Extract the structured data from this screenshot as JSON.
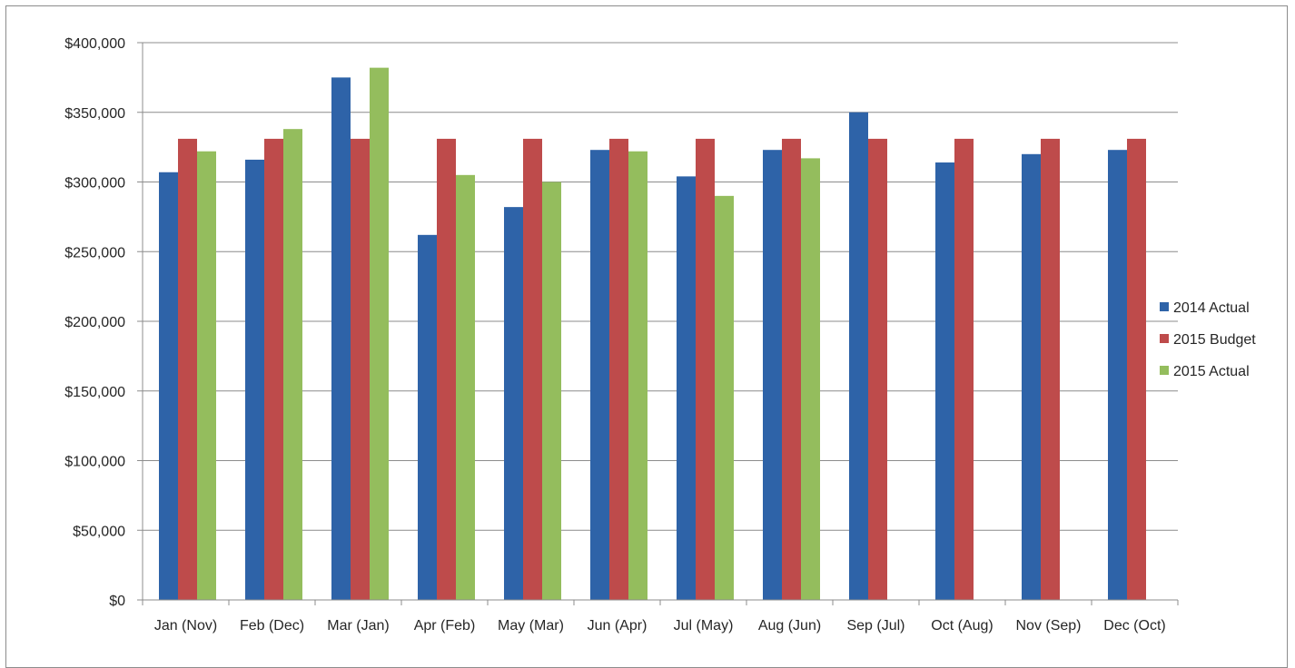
{
  "chart_data": {
    "type": "bar",
    "categories": [
      "Jan (Nov)",
      "Feb (Dec)",
      "Mar (Jan)",
      "Apr (Feb)",
      "May (Mar)",
      "Jun (Apr)",
      "Jul (May)",
      "Aug (Jun)",
      "Sep (Jul)",
      "Oct (Aug)",
      "Nov (Sep)",
      "Dec (Oct)"
    ],
    "series": [
      {
        "name": "2014 Actual",
        "color": "#2e63a8",
        "values": [
          307000,
          316000,
          375000,
          262000,
          282000,
          323000,
          304000,
          323000,
          350000,
          314000,
          320000,
          323000
        ]
      },
      {
        "name": "2015 Budget",
        "color": "#be4b4b",
        "values": [
          331000,
          331000,
          331000,
          331000,
          331000,
          331000,
          331000,
          331000,
          331000,
          331000,
          331000,
          331000
        ]
      },
      {
        "name": "2015 Actual",
        "color": "#94bd5d",
        "values": [
          322000,
          338000,
          382000,
          305000,
          300000,
          322000,
          290000,
          317000,
          null,
          null,
          null,
          null
        ]
      }
    ],
    "y_ticks": [
      "$0",
      "$50,000",
      "$100,000",
      "$150,000",
      "$200,000",
      "$250,000",
      "$300,000",
      "$350,000",
      "$400,000"
    ],
    "ylim": [
      0,
      400000
    ],
    "grid": true,
    "legend_position": "right"
  },
  "colors": {
    "gridline": "#8c8c8c",
    "axis": "#8c8c8c"
  }
}
